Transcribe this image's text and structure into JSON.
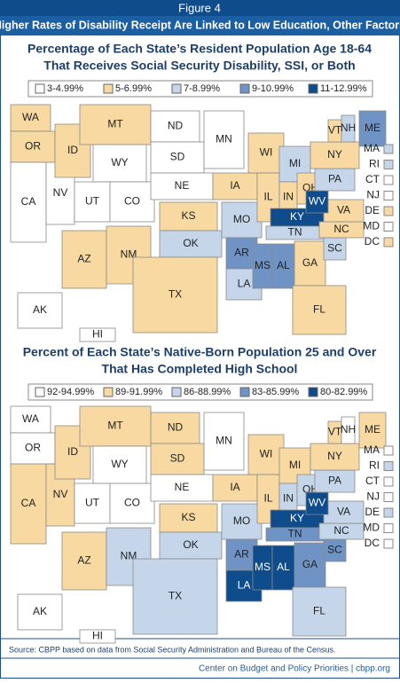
{
  "header": {
    "figure": "Figure 4",
    "title": "Higher Rates of Disability Receipt Are Linked to Low Education, Other Factors"
  },
  "maps": [
    {
      "title_lines": [
        "Percentage of Each State’s Resident Population Age 18-64",
        "That Receives Social Security Disability, SSI, or Both"
      ],
      "legend": [
        {
          "label": "3-4.99%",
          "color": "#ffffff"
        },
        {
          "label": "5-6.99%",
          "color": "#f7d9a1"
        },
        {
          "label": "7-8.99%",
          "color": "#c6d6ea"
        },
        {
          "label": "9-10.99%",
          "color": "#6f93c4"
        },
        {
          "label": "11-12.99%",
          "color": "#0f4c8c"
        }
      ],
      "states": [
        {
          "label": "WA",
          "color": "#f7d9a1"
        },
        {
          "label": "OR",
          "color": "#f7d9a1"
        },
        {
          "label": "CA",
          "color": "#ffffff"
        },
        {
          "label": "NV",
          "color": "#ffffff"
        },
        {
          "label": "ID",
          "color": "#f7d9a1"
        },
        {
          "label": "MT",
          "color": "#f7d9a1"
        },
        {
          "label": "WY",
          "color": "#ffffff"
        },
        {
          "label": "UT",
          "color": "#ffffff"
        },
        {
          "label": "CO",
          "color": "#ffffff"
        },
        {
          "label": "AZ",
          "color": "#f7d9a1"
        },
        {
          "label": "NM",
          "color": "#f7d9a1"
        },
        {
          "label": "ND",
          "color": "#ffffff"
        },
        {
          "label": "SD",
          "color": "#ffffff"
        },
        {
          "label": "NE",
          "color": "#ffffff"
        },
        {
          "label": "KS",
          "color": "#f7d9a1"
        },
        {
          "label": "OK",
          "color": "#c6d6ea"
        },
        {
          "label": "TX",
          "color": "#f7d9a1"
        },
        {
          "label": "MN",
          "color": "#ffffff"
        },
        {
          "label": "IA",
          "color": "#f7d9a1"
        },
        {
          "label": "MO",
          "color": "#c6d6ea"
        },
        {
          "label": "AR",
          "color": "#6f93c4"
        },
        {
          "label": "LA",
          "color": "#c6d6ea"
        },
        {
          "label": "WI",
          "color": "#f7d9a1"
        },
        {
          "label": "IL",
          "color": "#f7d9a1"
        },
        {
          "label": "MI",
          "color": "#c6d6ea"
        },
        {
          "label": "IN",
          "color": "#f7d9a1"
        },
        {
          "label": "OH",
          "color": "#f7d9a1"
        },
        {
          "label": "KY",
          "color": "#0f4c8c"
        },
        {
          "label": "TN",
          "color": "#c6d6ea"
        },
        {
          "label": "MS",
          "color": "#6f93c4"
        },
        {
          "label": "AL",
          "color": "#6f93c4"
        },
        {
          "label": "GA",
          "color": "#f7d9a1"
        },
        {
          "label": "FL",
          "color": "#f7d9a1"
        },
        {
          "label": "SC",
          "color": "#c6d6ea"
        },
        {
          "label": "NC",
          "color": "#f7d9a1"
        },
        {
          "label": "VA",
          "color": "#f7d9a1"
        },
        {
          "label": "WV",
          "color": "#0f4c8c"
        },
        {
          "label": "PA",
          "color": "#c6d6ea"
        },
        {
          "label": "NY",
          "color": "#f7d9a1"
        },
        {
          "label": "ME",
          "color": "#6f93c4"
        },
        {
          "label": "VT",
          "color": "#f7d9a1"
        },
        {
          "label": "NH",
          "color": "#c6d6ea"
        },
        {
          "label": "MA",
          "color": "#c6d6ea"
        },
        {
          "label": "RI",
          "color": "#c6d6ea"
        },
        {
          "label": "CT",
          "color": "#ffffff"
        },
        {
          "label": "NJ",
          "color": "#ffffff"
        },
        {
          "label": "DE",
          "color": "#f7d9a1"
        },
        {
          "label": "MD",
          "color": "#ffffff"
        },
        {
          "label": "DC",
          "color": "#f7d9a1"
        },
        {
          "label": "AK",
          "color": "#ffffff"
        },
        {
          "label": "HI",
          "color": "#ffffff"
        }
      ]
    },
    {
      "title_lines": [
        "Percent of Each State’s Native-Born Population 25 and Over",
        "That Has Completed High School"
      ],
      "legend": [
        {
          "label": "92-94.99%",
          "color": "#ffffff"
        },
        {
          "label": "89-91.99%",
          "color": "#f7d9a1"
        },
        {
          "label": "86-88.99%",
          "color": "#c6d6ea"
        },
        {
          "label": "83-85.99%",
          "color": "#6f93c4"
        },
        {
          "label": "80-82.99%",
          "color": "#0f4c8c"
        }
      ],
      "states": [
        {
          "label": "WA",
          "color": "#ffffff"
        },
        {
          "label": "OR",
          "color": "#ffffff"
        },
        {
          "label": "CA",
          "color": "#f7d9a1"
        },
        {
          "label": "NV",
          "color": "#f7d9a1"
        },
        {
          "label": "ID",
          "color": "#f7d9a1"
        },
        {
          "label": "MT",
          "color": "#f7d9a1"
        },
        {
          "label": "WY",
          "color": "#ffffff"
        },
        {
          "label": "UT",
          "color": "#ffffff"
        },
        {
          "label": "CO",
          "color": "#ffffff"
        },
        {
          "label": "AZ",
          "color": "#f7d9a1"
        },
        {
          "label": "NM",
          "color": "#c6d6ea"
        },
        {
          "label": "ND",
          "color": "#f7d9a1"
        },
        {
          "label": "SD",
          "color": "#f7d9a1"
        },
        {
          "label": "NE",
          "color": "#ffffff"
        },
        {
          "label": "KS",
          "color": "#f7d9a1"
        },
        {
          "label": "OK",
          "color": "#c6d6ea"
        },
        {
          "label": "TX",
          "color": "#c6d6ea"
        },
        {
          "label": "MN",
          "color": "#ffffff"
        },
        {
          "label": "IA",
          "color": "#f7d9a1"
        },
        {
          "label": "MO",
          "color": "#c6d6ea"
        },
        {
          "label": "AR",
          "color": "#6f93c4"
        },
        {
          "label": "LA",
          "color": "#0f4c8c"
        },
        {
          "label": "WI",
          "color": "#f7d9a1"
        },
        {
          "label": "IL",
          "color": "#f7d9a1"
        },
        {
          "label": "MI",
          "color": "#f7d9a1"
        },
        {
          "label": "IN",
          "color": "#c6d6ea"
        },
        {
          "label": "OH",
          "color": "#c6d6ea"
        },
        {
          "label": "KY",
          "color": "#0f4c8c"
        },
        {
          "label": "TN",
          "color": "#6f93c4"
        },
        {
          "label": "MS",
          "color": "#0f4c8c"
        },
        {
          "label": "AL",
          "color": "#0f4c8c"
        },
        {
          "label": "GA",
          "color": "#6f93c4"
        },
        {
          "label": "FL",
          "color": "#c6d6ea"
        },
        {
          "label": "SC",
          "color": "#6f93c4"
        },
        {
          "label": "NC",
          "color": "#c6d6ea"
        },
        {
          "label": "VA",
          "color": "#c6d6ea"
        },
        {
          "label": "WV",
          "color": "#0f4c8c"
        },
        {
          "label": "PA",
          "color": "#c6d6ea"
        },
        {
          "label": "NY",
          "color": "#f7d9a1"
        },
        {
          "label": "ME",
          "color": "#f7d9a1"
        },
        {
          "label": "VT",
          "color": "#f7d9a1"
        },
        {
          "label": "NH",
          "color": "#ffffff"
        },
        {
          "label": "MA",
          "color": "#ffffff"
        },
        {
          "label": "RI",
          "color": "#c6d6ea"
        },
        {
          "label": "CT",
          "color": "#ffffff"
        },
        {
          "label": "NJ",
          "color": "#ffffff"
        },
        {
          "label": "DE",
          "color": "#c6d6ea"
        },
        {
          "label": "MD",
          "color": "#ffffff"
        },
        {
          "label": "DC",
          "color": "#ffffff"
        },
        {
          "label": "AK",
          "color": "#ffffff"
        },
        {
          "label": "HI",
          "color": "#ffffff"
        }
      ]
    }
  ],
  "source": "Source:  CBPP based on data from Social Security Administration and Bureau of the Census.",
  "footer": "Center on Budget and Policy Priorities | cbpp.org"
}
